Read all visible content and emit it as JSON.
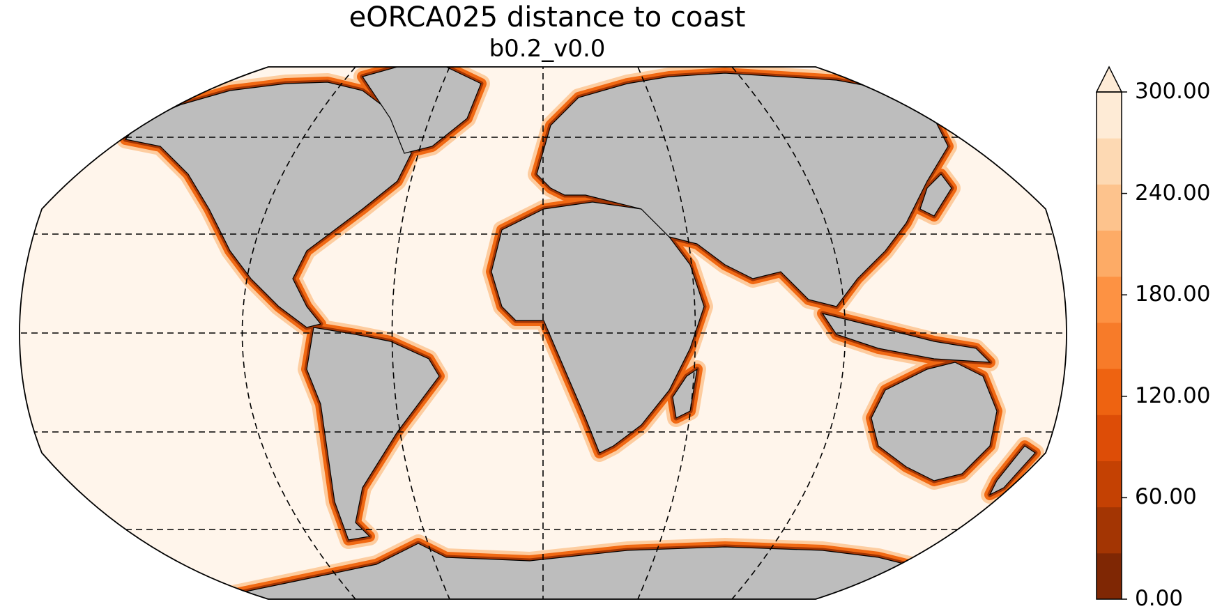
{
  "figure": {
    "title": "eORCA025 distance to coast",
    "subtitle": "b0.2_v0.0"
  },
  "map": {
    "projection": "Robinson",
    "land_color": "#bdbdbd",
    "ocean_far_color": "#fff5eb",
    "coast_line_color": "#000000",
    "graticule_style": "dashed"
  },
  "colorbar": {
    "min": 0,
    "max": 300,
    "extend": "max",
    "colors": [
      "#7f2704",
      "#a33503",
      "#c44103",
      "#dd4d07",
      "#ee6311",
      "#f77b29",
      "#fd9243",
      "#fdab66",
      "#fdc38d",
      "#fdd9b3",
      "#feebd6"
    ],
    "tick_labels": [
      "0.00",
      "60.00",
      "120.00",
      "180.00",
      "240.00",
      "300.00"
    ]
  }
}
